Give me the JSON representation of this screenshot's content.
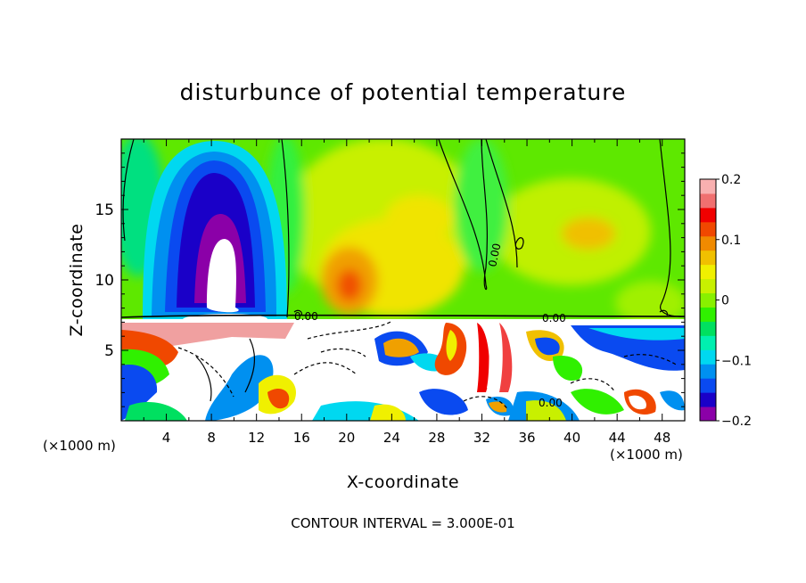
{
  "chart_data": {
    "type": "heatmap",
    "title": "disturbunce of potential temperature",
    "xlabel": "X-coordinate",
    "ylabel": "Z-coordinate",
    "x_unit": "(×1000 m)",
    "x_unit_right": "(×1000 m)",
    "xlim": [
      0,
      50
    ],
    "ylim": [
      0,
      20
    ],
    "x_ticks": [
      4,
      8,
      12,
      16,
      20,
      24,
      28,
      32,
      36,
      40,
      44,
      48
    ],
    "y_ticks": [
      5,
      10,
      15
    ],
    "colorbar": {
      "ticks": [
        {
          "value": 0.2,
          "label": "0.2"
        },
        {
          "value": 0.1,
          "label": "0.1"
        },
        {
          "value": 0,
          "label": "0"
        },
        {
          "value": -0.1,
          "label": "−0.1"
        },
        {
          "value": -0.2,
          "label": "−0.2"
        }
      ],
      "range": [
        -0.2,
        0.2
      ],
      "colors": [
        "#8b00a8",
        "#1a00c8",
        "#0a4af0",
        "#0090f0",
        "#00d8f0",
        "#00f0b0",
        "#00e060",
        "#30f000",
        "#88f000",
        "#c8f000",
        "#f0f000",
        "#f0c000",
        "#f08a00",
        "#f04800",
        "#f00000",
        "#f07070",
        "#f8b0b0"
      ]
    },
    "contour_labels": [
      "0.00",
      "0.00",
      "0.00",
      "0.00"
    ],
    "footer": "CONTOUR INTERVAL = 3.000E-01",
    "features": [
      {
        "x": 8.5,
        "z": 15,
        "value": -0.18
      },
      {
        "x": 9.5,
        "z": 11,
        "value": -0.2
      },
      {
        "x": 20,
        "z": 10,
        "value": 0.12
      },
      {
        "x": 26,
        "z": 14,
        "value": 0.05
      },
      {
        "x": 43,
        "z": 14,
        "value": 0.07
      },
      {
        "x": 2,
        "z": 18,
        "value": -0.02
      },
      {
        "x": 34,
        "z": 18,
        "value": 0.02
      }
    ]
  }
}
